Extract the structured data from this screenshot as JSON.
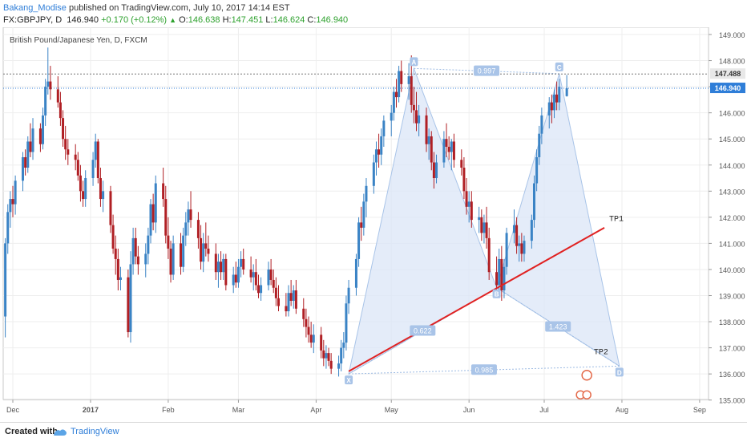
{
  "header": {
    "author": "Bakang_Modise",
    "published": "published on TradingView.com, July 10, 2017 14:14 EST",
    "symbol": "FX:GBPJPY, D",
    "last": "146.940",
    "change": "+0.170 (+0.12%)",
    "open_label": "O:",
    "open": "146.638",
    "high_label": "H:",
    "high": "147.451",
    "low_label": "L:",
    "low": "146.624",
    "close_label": "C:",
    "close": "146.940"
  },
  "footer": {
    "created_with": "Created with",
    "brand": "TradingView"
  },
  "colors": {
    "up": "#3a83c5",
    "down": "#b01f24",
    "pattern_fill": "#dbe6f7",
    "trendline": "#e02222",
    "accent": "#2f7ed8"
  },
  "chart_data": {
    "type": "candlestick",
    "title": "British Pound/Japanese Yen, D, FXCM",
    "x_tick_labels": [
      "Dec",
      "2017",
      "Feb",
      "Mar",
      "Apr",
      "May",
      "Jun",
      "Jul",
      "Aug",
      "Sep"
    ],
    "y_tick_labels": [
      "135.000",
      "136.000",
      "137.000",
      "138.000",
      "139.000",
      "140.000",
      "141.000",
      "142.000",
      "143.000",
      "144.000",
      "145.000",
      "146.000",
      "147.000",
      "148.000",
      "149.000"
    ],
    "ylim": [
      134.6,
      149.3
    ],
    "price_badges": [
      {
        "value": "147.488",
        "style": "dark"
      },
      {
        "value": "146.940",
        "style": "blue"
      }
    ],
    "xabcd_points": [
      {
        "label": "X",
        "date": "2017-04-14",
        "value": 136.0
      },
      {
        "label": "A",
        "date": "2017-05-10",
        "value": 147.7
      },
      {
        "label": "B",
        "date": "2017-06-12",
        "value": 139.3
      },
      {
        "label": "C",
        "date": "2017-07-07",
        "value": 147.5
      },
      {
        "label": "D",
        "date": "2017-07-31",
        "value": 136.3
      }
    ],
    "ratios": [
      "0.997",
      "0.622",
      "1.423",
      "0.985"
    ],
    "trendline": {
      "from": {
        "date": "2017-04-14",
        "value": 136.1
      },
      "to": {
        "date": "2017-07-25",
        "value": 141.6
      }
    },
    "annotations": [
      "TP1",
      "TP2"
    ],
    "candles": [
      [
        "2016-11-28",
        138.2,
        141.2,
        137.4,
        141.0
      ],
      [
        "2016-11-29",
        141.0,
        142.5,
        140.6,
        142.2
      ],
      [
        "2016-11-30",
        142.2,
        143.0,
        141.6,
        142.7
      ],
      [
        "2016-12-01",
        142.7,
        143.2,
        142.0,
        142.5
      ],
      [
        "2016-12-02",
        142.5,
        143.6,
        142.1,
        143.4
      ],
      [
        "2016-12-05",
        143.4,
        144.5,
        143.0,
        144.3
      ],
      [
        "2016-12-06",
        144.3,
        144.6,
        143.6,
        143.9
      ],
      [
        "2016-12-07",
        143.9,
        145.1,
        143.7,
        144.9
      ],
      [
        "2016-12-08",
        144.9,
        145.6,
        144.3,
        144.5
      ],
      [
        "2016-12-09",
        144.5,
        145.8,
        144.2,
        145.4
      ],
      [
        "2016-12-12",
        145.4,
        145.6,
        144.5,
        144.8
      ],
      [
        "2016-12-13",
        144.8,
        146.2,
        144.6,
        145.9
      ],
      [
        "2016-12-14",
        145.9,
        147.3,
        145.5,
        147.0
      ],
      [
        "2016-12-15",
        147.0,
        148.5,
        146.7,
        147.2
      ],
      [
        "2016-12-16",
        147.2,
        147.8,
        146.5,
        146.9
      ],
      [
        "2016-12-19",
        146.9,
        147.4,
        146.2,
        146.4
      ],
      [
        "2016-12-20",
        146.4,
        146.8,
        145.5,
        145.8
      ],
      [
        "2016-12-21",
        145.8,
        146.1,
        144.7,
        145.0
      ],
      [
        "2016-12-22",
        145.0,
        145.5,
        144.2,
        144.6
      ],
      [
        "2016-12-23",
        144.6,
        145.0,
        144.0,
        144.4
      ],
      [
        "2016-12-26",
        144.4,
        144.8,
        143.8,
        144.2
      ],
      [
        "2016-12-27",
        144.2,
        144.5,
        143.4,
        143.6
      ],
      [
        "2016-12-28",
        143.6,
        144.0,
        142.6,
        143.0
      ],
      [
        "2016-12-29",
        143.0,
        143.4,
        142.4,
        142.7
      ],
      [
        "2016-12-30",
        142.7,
        143.8,
        142.4,
        143.5
      ],
      [
        "2017-01-02",
        143.5,
        144.5,
        143.2,
        144.2
      ],
      [
        "2017-01-03",
        144.2,
        145.2,
        143.9,
        144.9
      ],
      [
        "2017-01-04",
        144.9,
        145.0,
        143.3,
        143.5
      ],
      [
        "2017-01-05",
        143.5,
        143.9,
        142.4,
        142.7
      ],
      [
        "2017-01-06",
        142.7,
        143.4,
        142.2,
        143.0
      ],
      [
        "2017-01-09",
        143.0,
        143.2,
        141.4,
        141.7
      ],
      [
        "2017-01-10",
        141.7,
        142.1,
        140.6,
        140.8
      ],
      [
        "2017-01-11",
        140.8,
        141.3,
        139.8,
        140.4
      ],
      [
        "2017-01-12",
        140.4,
        140.8,
        139.2,
        139.6
      ],
      [
        "2017-01-13",
        139.6,
        140.1,
        139.2,
        139.7
      ],
      [
        "2017-01-16",
        139.7,
        140.0,
        137.4,
        137.6
      ],
      [
        "2017-01-17",
        137.6,
        140.7,
        137.2,
        140.2
      ],
      [
        "2017-01-18",
        140.2,
        141.6,
        139.8,
        141.2
      ],
      [
        "2017-01-19",
        141.2,
        141.6,
        140.2,
        140.5
      ],
      [
        "2017-01-20",
        140.5,
        140.9,
        139.8,
        140.2
      ],
      [
        "2017-01-23",
        140.2,
        141.0,
        139.7,
        140.6
      ],
      [
        "2017-01-24",
        140.6,
        141.6,
        140.2,
        141.3
      ],
      [
        "2017-01-25",
        141.3,
        142.7,
        141.0,
        142.5
      ],
      [
        "2017-01-26",
        142.5,
        142.9,
        141.5,
        141.8
      ],
      [
        "2017-01-27",
        141.8,
        143.6,
        141.4,
        143.3
      ],
      [
        "2017-01-30",
        143.3,
        143.9,
        142.4,
        142.7
      ],
      [
        "2017-01-31",
        142.7,
        143.2,
        141.0,
        141.3
      ],
      [
        "2017-02-01",
        141.3,
        142.0,
        140.4,
        140.8
      ],
      [
        "2017-02-02",
        140.8,
        141.1,
        139.5,
        139.8
      ],
      [
        "2017-02-03",
        139.8,
        141.3,
        139.6,
        141.0
      ],
      [
        "2017-02-06",
        141.0,
        141.4,
        139.8,
        140.1
      ],
      [
        "2017-02-07",
        140.1,
        141.6,
        139.9,
        141.3
      ],
      [
        "2017-02-08",
        141.3,
        142.2,
        140.9,
        141.8
      ],
      [
        "2017-02-09",
        141.8,
        142.6,
        141.3,
        142.3
      ],
      [
        "2017-02-10",
        142.3,
        143.0,
        141.6,
        141.9
      ],
      [
        "2017-02-13",
        141.9,
        142.2,
        140.8,
        141.2
      ],
      [
        "2017-02-14",
        141.2,
        141.7,
        140.0,
        140.3
      ],
      [
        "2017-02-15",
        140.3,
        141.4,
        139.9,
        141.0
      ],
      [
        "2017-02-16",
        141.0,
        141.8,
        140.5,
        140.8
      ],
      [
        "2017-02-17",
        140.8,
        141.3,
        140.3,
        140.6
      ],
      [
        "2017-02-20",
        140.6,
        141.0,
        139.6,
        139.9
      ],
      [
        "2017-02-21",
        139.9,
        140.6,
        139.3,
        140.3
      ],
      [
        "2017-02-22",
        140.3,
        140.7,
        139.6,
        139.9
      ],
      [
        "2017-02-23",
        139.9,
        140.6,
        139.6,
        140.4
      ],
      [
        "2017-02-24",
        140.4,
        140.6,
        139.2,
        139.4
      ],
      [
        "2017-02-27",
        139.4,
        140.1,
        139.1,
        139.8
      ],
      [
        "2017-02-28",
        139.8,
        140.3,
        139.3,
        139.5
      ],
      [
        "2017-03-01",
        139.5,
        140.4,
        139.3,
        140.1
      ],
      [
        "2017-03-02",
        140.1,
        140.7,
        139.7,
        140.4
      ],
      [
        "2017-03-03",
        140.4,
        140.8,
        139.8,
        140.0
      ],
      [
        "2017-03-06",
        140.0,
        140.5,
        139.5,
        139.7
      ],
      [
        "2017-03-07",
        139.7,
        140.2,
        139.2,
        139.9
      ],
      [
        "2017-03-08",
        139.9,
        140.4,
        139.2,
        139.4
      ],
      [
        "2017-03-09",
        139.4,
        139.8,
        138.9,
        139.1
      ],
      [
        "2017-03-10",
        139.1,
        139.7,
        138.8,
        139.4
      ],
      [
        "2017-03-13",
        139.4,
        140.3,
        139.2,
        140.0
      ],
      [
        "2017-03-14",
        140.0,
        140.4,
        139.4,
        139.6
      ],
      [
        "2017-03-15",
        139.6,
        140.0,
        139.1,
        139.3
      ],
      [
        "2017-03-16",
        139.3,
        139.7,
        138.6,
        138.9
      ],
      [
        "2017-03-17",
        138.9,
        139.4,
        138.4,
        138.6
      ],
      [
        "2017-03-20",
        138.6,
        139.1,
        138.2,
        138.4
      ],
      [
        "2017-03-21",
        138.4,
        139.4,
        138.2,
        139.1
      ],
      [
        "2017-03-22",
        139.1,
        139.6,
        138.6,
        138.8
      ],
      [
        "2017-03-23",
        138.8,
        139.4,
        138.5,
        139.2
      ],
      [
        "2017-03-24",
        139.2,
        139.6,
        138.3,
        138.5
      ],
      [
        "2017-03-27",
        138.5,
        138.9,
        137.8,
        138.1
      ],
      [
        "2017-03-28",
        138.1,
        138.5,
        137.4,
        137.8
      ],
      [
        "2017-03-29",
        137.8,
        138.2,
        137.2,
        137.5
      ],
      [
        "2017-03-30",
        137.5,
        138.0,
        137.0,
        137.2
      ],
      [
        "2017-03-31",
        137.2,
        137.9,
        136.8,
        137.5
      ],
      [
        "2017-04-03",
        137.5,
        137.8,
        136.6,
        136.9
      ],
      [
        "2017-04-04",
        136.9,
        137.3,
        136.3,
        136.6
      ],
      [
        "2017-04-05",
        136.6,
        137.1,
        136.2,
        136.8
      ],
      [
        "2017-04-06",
        136.8,
        137.0,
        136.3,
        136.5
      ],
      [
        "2017-04-07",
        136.5,
        136.8,
        136.0,
        136.2
      ],
      [
        "2017-04-10",
        136.2,
        136.7,
        135.9,
        136.4
      ],
      [
        "2017-04-11",
        136.4,
        137.3,
        136.1,
        137.0
      ],
      [
        "2017-04-12",
        137.0,
        137.6,
        136.6,
        137.2
      ],
      [
        "2017-04-13",
        137.2,
        139.0,
        136.9,
        138.7
      ],
      [
        "2017-04-14",
        138.7,
        139.6,
        138.3,
        139.3
      ],
      [
        "2017-04-17",
        139.3,
        140.6,
        139.0,
        140.4
      ],
      [
        "2017-04-18",
        140.4,
        142.0,
        140.1,
        141.8
      ],
      [
        "2017-04-19",
        141.8,
        142.4,
        141.1,
        141.6
      ],
      [
        "2017-04-20",
        141.6,
        142.9,
        141.3,
        142.6
      ],
      [
        "2017-04-21",
        142.6,
        143.5,
        142.0,
        143.2
      ],
      [
        "2017-04-24",
        143.2,
        144.4,
        142.9,
        144.1
      ],
      [
        "2017-04-25",
        144.1,
        144.9,
        143.6,
        144.6
      ],
      [
        "2017-04-26",
        144.6,
        145.2,
        143.9,
        144.4
      ],
      [
        "2017-04-27",
        144.4,
        145.4,
        144.0,
        145.1
      ],
      [
        "2017-04-28",
        145.1,
        145.9,
        144.7,
        145.7
      ],
      [
        "2017-05-01",
        145.7,
        146.3,
        145.1,
        146.0
      ],
      [
        "2017-05-02",
        146.0,
        147.0,
        145.7,
        146.8
      ],
      [
        "2017-05-03",
        146.8,
        147.3,
        146.2,
        146.6
      ],
      [
        "2017-05-04",
        146.6,
        147.8,
        146.4,
        147.6
      ],
      [
        "2017-05-05",
        147.6,
        148.0,
        146.8,
        147.1
      ],
      [
        "2017-05-08",
        147.1,
        147.9,
        146.5,
        147.4
      ],
      [
        "2017-05-09",
        147.4,
        148.2,
        146.0,
        146.3
      ],
      [
        "2017-05-10",
        146.3,
        147.0,
        145.6,
        146.1
      ],
      [
        "2017-05-11",
        146.1,
        146.8,
        145.3,
        145.6
      ],
      [
        "2017-05-12",
        145.6,
        146.3,
        145.1,
        145.9
      ],
      [
        "2017-05-15",
        145.9,
        146.2,
        144.5,
        144.8
      ],
      [
        "2017-05-16",
        144.8,
        145.4,
        144.2,
        145.1
      ],
      [
        "2017-05-17",
        145.1,
        145.3,
        143.8,
        144.1
      ],
      [
        "2017-05-18",
        144.1,
        144.5,
        143.1,
        143.5
      ],
      [
        "2017-05-19",
        143.5,
        144.4,
        143.3,
        144.1
      ],
      [
        "2017-05-22",
        144.1,
        145.3,
        143.9,
        145.0
      ],
      [
        "2017-05-23",
        145.0,
        145.6,
        144.3,
        144.7
      ],
      [
        "2017-05-24",
        144.7,
        145.1,
        144.2,
        144.5
      ],
      [
        "2017-05-25",
        144.5,
        145.0,
        143.8,
        144.9
      ],
      [
        "2017-05-26",
        144.9,
        145.2,
        143.9,
        144.2
      ],
      [
        "2017-05-29",
        144.2,
        144.6,
        143.6,
        143.9
      ],
      [
        "2017-05-30",
        143.9,
        144.3,
        142.7,
        143.0
      ],
      [
        "2017-05-31",
        143.0,
        143.5,
        142.1,
        142.4
      ],
      [
        "2017-06-01",
        142.4,
        143.0,
        141.8,
        142.6
      ],
      [
        "2017-06-02",
        142.6,
        143.0,
        141.6,
        141.9
      ],
      [
        "2017-06-05",
        141.9,
        142.4,
        141.4,
        142.0
      ],
      [
        "2017-06-06",
        142.0,
        142.3,
        141.1,
        141.4
      ],
      [
        "2017-06-07",
        141.4,
        142.1,
        141.0,
        141.8
      ],
      [
        "2017-06-08",
        141.8,
        142.4,
        140.8,
        141.2
      ],
      [
        "2017-06-09",
        141.2,
        141.6,
        139.6,
        139.9
      ],
      [
        "2017-06-12",
        139.9,
        140.5,
        139.0,
        139.4
      ],
      [
        "2017-06-13",
        139.4,
        140.8,
        139.1,
        140.4
      ],
      [
        "2017-06-14",
        140.4,
        140.9,
        138.8,
        139.2
      ],
      [
        "2017-06-15",
        139.2,
        140.4,
        138.9,
        140.1
      ],
      [
        "2017-06-16",
        140.1,
        141.6,
        139.8,
        141.4
      ],
      [
        "2017-06-19",
        141.4,
        142.3,
        141.0,
        141.7
      ],
      [
        "2017-06-20",
        141.7,
        142.0,
        140.6,
        140.9
      ],
      [
        "2017-06-21",
        140.9,
        141.3,
        140.3,
        141.0
      ],
      [
        "2017-06-22",
        141.0,
        141.4,
        140.3,
        140.6
      ],
      [
        "2017-06-23",
        140.6,
        141.3,
        140.3,
        141.1
      ],
      [
        "2017-06-26",
        141.1,
        142.1,
        140.8,
        141.9
      ],
      [
        "2017-06-27",
        141.9,
        143.6,
        141.6,
        143.3
      ],
      [
        "2017-06-28",
        143.3,
        144.6,
        143.0,
        144.3
      ],
      [
        "2017-06-29",
        144.3,
        145.5,
        144.0,
        145.2
      ],
      [
        "2017-06-30",
        145.2,
        146.2,
        144.8,
        145.9
      ],
      [
        "2017-07-03",
        145.9,
        146.6,
        145.4,
        146.4
      ],
      [
        "2017-07-04",
        146.4,
        146.7,
        145.6,
        146.1
      ],
      [
        "2017-07-05",
        146.1,
        146.9,
        145.8,
        146.7
      ],
      [
        "2017-07-06",
        146.7,
        147.2,
        146.1,
        146.4
      ],
      [
        "2017-07-07",
        146.4,
        147.3,
        146.1,
        147.0
      ],
      [
        "2017-07-10",
        146.64,
        147.45,
        146.62,
        146.94
      ]
    ]
  }
}
